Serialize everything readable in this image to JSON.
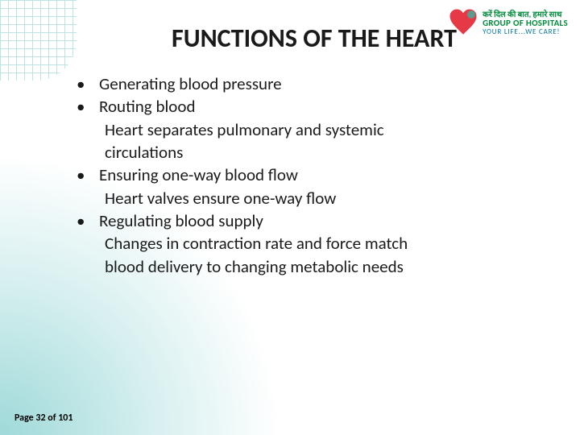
{
  "title": "FUNCTIONS OF THE HEART",
  "bullets": [
    {
      "main": "Generating blood pressure",
      "subs": []
    },
    {
      "main": "Routing blood",
      "subs": [
        "Heart separates pulmonary and systemic",
        "circulations"
      ]
    },
    {
      "main": "Ensuring one-way blood flow",
      "subs": [
        "Heart valves ensure one-way flow"
      ]
    },
    {
      "main": "Regulating blood supply",
      "subs": [
        "Changes in contraction rate and force match",
        "blood delivery to changing metabolic needs"
      ]
    }
  ],
  "page": "Page 32 of 101",
  "logo": {
    "hindi": "करें दिल की बात, हमारे साथ",
    "group": "GROUP OF HOSPITALS",
    "tag": "YOUR LIFE...WE CARE!"
  },
  "colors": {
    "title": "#1a1a1a",
    "body": "#1a1a1a",
    "grid": "#7fc9c9",
    "gradient": "#40b4b4",
    "logoGreen": "#008c3a",
    "logoBlue": "#0077aa"
  },
  "fontsize": {
    "title": 32,
    "body": 21,
    "page": 12
  }
}
